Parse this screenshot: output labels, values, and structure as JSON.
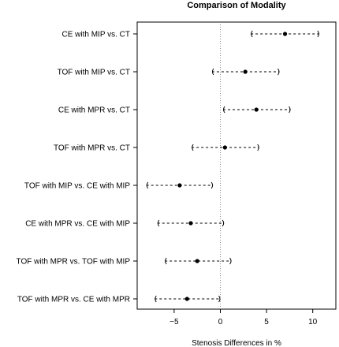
{
  "chart_data": {
    "type": "forest",
    "title": "Comparison of Modality",
    "xlabel": "Stenosis Differences in %",
    "ylabel": "",
    "xlim": [
      -9,
      12.5
    ],
    "x_ticks": [
      -5,
      0,
      5,
      10
    ],
    "x_tick_labels": [
      "−5",
      "0",
      "5",
      "10"
    ],
    "reference_line": 0,
    "grid": false,
    "categories": [
      "CE with MIP vs. CT",
      "TOF with MIP vs. CT",
      "CE with MPR vs. CT",
      "TOF with MPR vs. CT",
      "TOF with MIP vs. CE with MIP",
      "CE with MPR vs. CE with MIP",
      "TOF with MPR vs. TOF with MIP",
      "TOF with MPR vs. CE with MPR"
    ],
    "series": [
      {
        "estimate": [
          7.0,
          2.7,
          3.9,
          0.5,
          -4.4,
          -3.2,
          -2.5,
          -3.6
        ],
        "lower": [
          3.3,
          -0.9,
          0.3,
          -3.1,
          -8.0,
          -6.8,
          -6.0,
          -7.1
        ],
        "upper": [
          10.7,
          6.4,
          7.6,
          4.2,
          -0.8,
          0.4,
          1.2,
          0.0
        ]
      }
    ],
    "colors": {
      "line": "#000000",
      "reference": "#888888",
      "point": "#000000"
    }
  }
}
